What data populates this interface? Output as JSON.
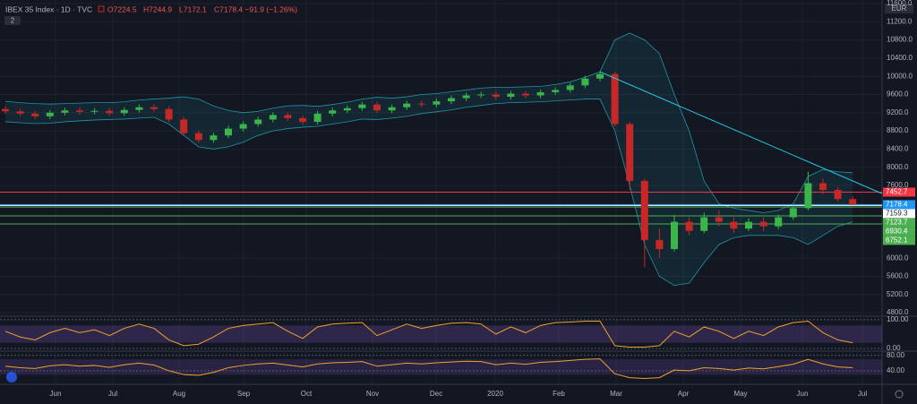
{
  "chart_data": {
    "type": "candlestick",
    "header": {
      "symbol": "IBEX 35 Index · 1D · TVC",
      "open": "O7224.5",
      "high": "H7244.9",
      "low": "L7172.1",
      "close": "C7178.4 −91.9 (−1.26%)",
      "badge": "2",
      "currency": "EUR"
    },
    "x_labels": [
      "Jun",
      "Jul",
      "Aug",
      "Sep",
      "Oct",
      "Nov",
      "Dec",
      "2020",
      "Feb",
      "Mar",
      "Apr",
      "May",
      "Jun",
      "Jul"
    ],
    "ylim": [
      4743,
      11679
    ],
    "yticks": [
      {
        "value": 11600,
        "label": "11600.0"
      },
      {
        "value": 11200,
        "label": "11200.0"
      },
      {
        "value": 10800,
        "label": "10800.0"
      },
      {
        "value": 10400,
        "label": "10400.0"
      },
      {
        "value": 10000,
        "label": "10000.0"
      },
      {
        "value": 9600,
        "label": "9600.0"
      },
      {
        "value": 9200,
        "label": "9200.0"
      },
      {
        "value": 8800,
        "label": "8800.0"
      },
      {
        "value": 8400,
        "label": "8400.0"
      },
      {
        "value": 8000,
        "label": "8000.0"
      },
      {
        "value": 7600,
        "label": "7600.0"
      },
      {
        "value": 6000,
        "label": "6000.0"
      },
      {
        "value": 5600,
        "label": "5600.0"
      },
      {
        "value": 5200,
        "label": "5200.0"
      },
      {
        "value": 4800,
        "label": "4800.0"
      }
    ],
    "up_color": "#3bb44a",
    "down_color": "#c62828",
    "candles": [
      [
        9280,
        9340,
        9170,
        9230
      ],
      [
        9230,
        9290,
        9120,
        9180
      ],
      [
        9180,
        9240,
        9060,
        9120
      ],
      [
        9120,
        9260,
        9060,
        9200
      ],
      [
        9200,
        9310,
        9140,
        9250
      ],
      [
        9250,
        9310,
        9160,
        9220
      ],
      [
        9220,
        9300,
        9160,
        9240
      ],
      [
        9240,
        9300,
        9130,
        9190
      ],
      [
        9190,
        9320,
        9130,
        9260
      ],
      [
        9260,
        9380,
        9200,
        9320
      ],
      [
        9320,
        9380,
        9220,
        9280
      ],
      [
        9280,
        9340,
        8990,
        9050
      ],
      [
        9050,
        9110,
        8690,
        8750
      ],
      [
        8750,
        8810,
        8540,
        8600
      ],
      [
        8600,
        8760,
        8540,
        8700
      ],
      [
        8700,
        8910,
        8640,
        8850
      ],
      [
        8850,
        9010,
        8790,
        8950
      ],
      [
        8950,
        9110,
        8890,
        9050
      ],
      [
        9050,
        9210,
        8990,
        9150
      ],
      [
        9150,
        9210,
        9020,
        9080
      ],
      [
        9080,
        9140,
        8940,
        9000
      ],
      [
        9000,
        9240,
        8940,
        9180
      ],
      [
        9180,
        9310,
        9120,
        9250
      ],
      [
        9250,
        9360,
        9190,
        9300
      ],
      [
        9300,
        9440,
        9240,
        9380
      ],
      [
        9380,
        9440,
        9190,
        9250
      ],
      [
        9250,
        9380,
        9190,
        9320
      ],
      [
        9320,
        9460,
        9260,
        9400
      ],
      [
        9400,
        9460,
        9320,
        9380
      ],
      [
        9380,
        9510,
        9320,
        9450
      ],
      [
        9450,
        9580,
        9390,
        9520
      ],
      [
        9520,
        9640,
        9460,
        9580
      ],
      [
        9580,
        9660,
        9520,
        9600
      ],
      [
        9600,
        9660,
        9490,
        9550
      ],
      [
        9550,
        9680,
        9490,
        9620
      ],
      [
        9620,
        9680,
        9520,
        9580
      ],
      [
        9580,
        9710,
        9520,
        9650
      ],
      [
        9650,
        9760,
        9590,
        9700
      ],
      [
        9700,
        9860,
        9640,
        9800
      ],
      [
        9800,
        10010,
        9740,
        9950
      ],
      [
        9950,
        10110,
        9890,
        10050
      ],
      [
        10050,
        10100,
        8900,
        8950
      ],
      [
        8950,
        9000,
        7500,
        7700
      ],
      [
        7700,
        7750,
        5800,
        6400
      ],
      [
        6400,
        6650,
        6000,
        6200
      ],
      [
        6200,
        6950,
        6150,
        6800
      ],
      [
        6800,
        6900,
        6500,
        6600
      ],
      [
        6600,
        7000,
        6550,
        6900
      ],
      [
        6900,
        7050,
        6700,
        6800
      ],
      [
        6800,
        6900,
        6550,
        6650
      ],
      [
        6650,
        6880,
        6600,
        6800
      ],
      [
        6800,
        6900,
        6600,
        6700
      ],
      [
        6700,
        6960,
        6640,
        6900
      ],
      [
        6900,
        7160,
        6840,
        7100
      ],
      [
        7100,
        7900,
        7050,
        7650
      ],
      [
        7650,
        7750,
        7400,
        7500
      ],
      [
        7500,
        7560,
        7240,
        7300
      ],
      [
        7300,
        7360,
        7172,
        7178.4
      ]
    ],
    "bollinger": {
      "color": "#26c6da",
      "upper": [
        9450,
        9420,
        9400,
        9390,
        9400,
        9410,
        9420,
        9420,
        9440,
        9480,
        9500,
        9520,
        9550,
        9500,
        9350,
        9250,
        9200,
        9230,
        9300,
        9350,
        9360,
        9340,
        9380,
        9430,
        9500,
        9540,
        9520,
        9550,
        9600,
        9620,
        9660,
        9700,
        9740,
        9760,
        9760,
        9770,
        9780,
        9820,
        9880,
        9980,
        10100,
        10800,
        10950,
        10800,
        10500,
        9600,
        8800,
        7700,
        7200,
        7100,
        7050,
        7000,
        7050,
        7200,
        7800,
        7950,
        7900,
        7880
      ],
      "lower": [
        9000,
        8980,
        8960,
        8970,
        9000,
        9020,
        9040,
        9050,
        9060,
        9080,
        9100,
        8950,
        8700,
        8450,
        8400,
        8450,
        8550,
        8700,
        8800,
        8850,
        8880,
        8900,
        8950,
        9000,
        9060,
        9050,
        9080,
        9120,
        9180,
        9220,
        9260,
        9320,
        9360,
        9400,
        9420,
        9430,
        9440,
        9460,
        9480,
        9500,
        9500,
        8800,
        7600,
        6300,
        5600,
        5400,
        5450,
        5900,
        6300,
        6450,
        6500,
        6500,
        6500,
        6450,
        6300,
        6500,
        6700,
        6800
      ]
    },
    "trend_line": {
      "color": "#26c6da",
      "start": 10100,
      "end": 7420
    },
    "levels": [
      {
        "value": 7452.7,
        "label": "7452.7",
        "color": "#f23645"
      },
      {
        "value": 7178.4,
        "label": "7178.4",
        "color": "#2196f3"
      },
      {
        "value": 7159.3,
        "label": "7159.3",
        "color": "#ffffff"
      },
      {
        "value": 7123.7,
        "label": "7123.7",
        "color": "#4caf50"
      },
      {
        "value": 6930.4,
        "label": "6930.4",
        "color": "#4caf50"
      },
      {
        "value": 6752.1,
        "label": "6752.1",
        "color": "#4caf50"
      }
    ],
    "stoch": {
      "ylim": [
        -6,
        106
      ],
      "yticks": [
        {
          "value": 100,
          "label": "100.00"
        },
        {
          "value": 0,
          "label": "0.00"
        }
      ],
      "color": "#f0a030",
      "color2": "#2962ff",
      "values": [
        60,
        40,
        30,
        55,
        70,
        55,
        65,
        45,
        70,
        85,
        70,
        30,
        10,
        15,
        40,
        70,
        80,
        85,
        90,
        60,
        35,
        75,
        85,
        88,
        90,
        45,
        65,
        85,
        70,
        80,
        88,
        90,
        85,
        50,
        75,
        55,
        80,
        90,
        92,
        95,
        95,
        10,
        5,
        5,
        10,
        60,
        40,
        75,
        60,
        35,
        60,
        45,
        75,
        90,
        95,
        55,
        30,
        20
      ]
    },
    "rsi": {
      "ylim": [
        7,
        89
      ],
      "yticks": [
        {
          "value": 80,
          "label": "80.00"
        },
        {
          "value": 40,
          "label": "40.00"
        }
      ],
      "color": "#f0a030",
      "values": [
        52,
        48,
        46,
        53,
        56,
        52,
        54,
        49,
        56,
        60,
        55,
        40,
        30,
        28,
        36,
        48,
        54,
        58,
        60,
        55,
        50,
        58,
        61,
        62,
        64,
        52,
        56,
        60,
        58,
        61,
        63,
        65,
        64,
        56,
        60,
        57,
        62,
        64,
        67,
        70,
        71,
        32,
        22,
        20,
        22,
        42,
        40,
        48,
        46,
        42,
        47,
        45,
        51,
        57,
        70,
        58,
        50,
        48
      ]
    }
  }
}
